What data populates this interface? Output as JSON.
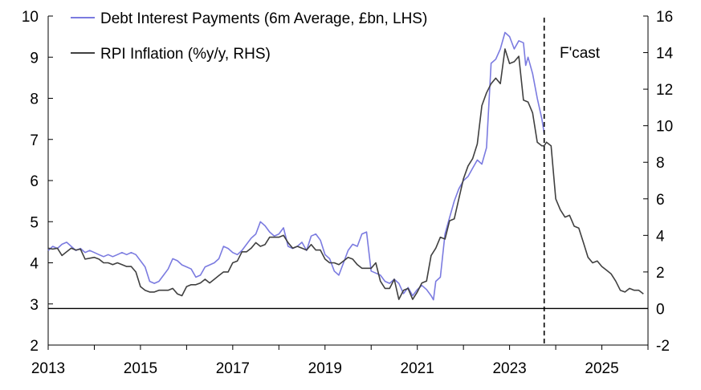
{
  "chart_data": {
    "type": "line",
    "title": "",
    "xlabel": "",
    "ylabel_left": "",
    "ylabel_right": "",
    "x_ticks": [
      2013,
      2015,
      2017,
      2019,
      2021,
      2023,
      2025
    ],
    "xlim": [
      2013,
      2026
    ],
    "ylim_left": [
      2,
      10
    ],
    "ylim_right": [
      -2,
      16
    ],
    "left_ticks": [
      2,
      3,
      4,
      5,
      6,
      7,
      8,
      9,
      10
    ],
    "right_ticks": [
      -2,
      0,
      2,
      4,
      6,
      8,
      10,
      12,
      14,
      16
    ],
    "forecast_start": 2023.75,
    "forecast_label": "F'cast",
    "legend_position": "top-left",
    "series": [
      {
        "name": "Debt Interest Payments (6m Average, £bn, LHS)",
        "axis": "left",
        "color": "#7B7BE0",
        "points": [
          [
            2013.0,
            4.3
          ],
          [
            2013.1,
            4.4
          ],
          [
            2013.2,
            4.35
          ],
          [
            2013.3,
            4.45
          ],
          [
            2013.4,
            4.5
          ],
          [
            2013.5,
            4.4
          ],
          [
            2013.6,
            4.3
          ],
          [
            2013.7,
            4.35
          ],
          [
            2013.8,
            4.25
          ],
          [
            2013.9,
            4.3
          ],
          [
            2014.0,
            4.25
          ],
          [
            2014.1,
            4.2
          ],
          [
            2014.2,
            4.15
          ],
          [
            2014.3,
            4.2
          ],
          [
            2014.4,
            4.15
          ],
          [
            2014.5,
            4.2
          ],
          [
            2014.6,
            4.25
          ],
          [
            2014.7,
            4.2
          ],
          [
            2014.8,
            4.25
          ],
          [
            2014.9,
            4.2
          ],
          [
            2015.0,
            4.05
          ],
          [
            2015.1,
            3.9
          ],
          [
            2015.2,
            3.55
          ],
          [
            2015.3,
            3.5
          ],
          [
            2015.4,
            3.55
          ],
          [
            2015.5,
            3.7
          ],
          [
            2015.6,
            3.85
          ],
          [
            2015.7,
            4.1
          ],
          [
            2015.8,
            4.05
          ],
          [
            2015.9,
            3.95
          ],
          [
            2016.0,
            3.9
          ],
          [
            2016.1,
            3.85
          ],
          [
            2016.2,
            3.65
          ],
          [
            2016.3,
            3.7
          ],
          [
            2016.4,
            3.9
          ],
          [
            2016.5,
            3.95
          ],
          [
            2016.6,
            4.0
          ],
          [
            2016.7,
            4.1
          ],
          [
            2016.8,
            4.4
          ],
          [
            2016.9,
            4.35
          ],
          [
            2017.0,
            4.25
          ],
          [
            2017.1,
            4.2
          ],
          [
            2017.2,
            4.3
          ],
          [
            2017.3,
            4.45
          ],
          [
            2017.4,
            4.6
          ],
          [
            2017.5,
            4.7
          ],
          [
            2017.6,
            5.0
          ],
          [
            2017.7,
            4.9
          ],
          [
            2017.8,
            4.75
          ],
          [
            2017.9,
            4.65
          ],
          [
            2018.0,
            4.7
          ],
          [
            2018.1,
            4.85
          ],
          [
            2018.2,
            4.4
          ],
          [
            2018.3,
            4.35
          ],
          [
            2018.4,
            4.4
          ],
          [
            2018.5,
            4.5
          ],
          [
            2018.6,
            4.3
          ],
          [
            2018.7,
            4.65
          ],
          [
            2018.8,
            4.7
          ],
          [
            2018.9,
            4.55
          ],
          [
            2019.0,
            4.2
          ],
          [
            2019.1,
            4.1
          ],
          [
            2019.2,
            3.8
          ],
          [
            2019.3,
            3.7
          ],
          [
            2019.4,
            4.0
          ],
          [
            2019.5,
            4.3
          ],
          [
            2019.6,
            4.45
          ],
          [
            2019.7,
            4.4
          ],
          [
            2019.8,
            4.7
          ],
          [
            2019.9,
            4.75
          ],
          [
            2020.0,
            3.8
          ],
          [
            2020.1,
            3.75
          ],
          [
            2020.2,
            3.7
          ],
          [
            2020.3,
            3.55
          ],
          [
            2020.4,
            3.5
          ],
          [
            2020.5,
            3.6
          ],
          [
            2020.6,
            3.5
          ],
          [
            2020.7,
            3.25
          ],
          [
            2020.8,
            3.4
          ],
          [
            2020.9,
            3.2
          ],
          [
            2021.0,
            3.35
          ],
          [
            2021.1,
            3.45
          ],
          [
            2021.2,
            3.35
          ],
          [
            2021.3,
            3.2
          ],
          [
            2021.35,
            3.1
          ],
          [
            2021.4,
            3.55
          ],
          [
            2021.5,
            3.65
          ],
          [
            2021.6,
            4.7
          ],
          [
            2021.7,
            5.1
          ],
          [
            2021.8,
            5.5
          ],
          [
            2021.9,
            5.8
          ],
          [
            2022.0,
            6.0
          ],
          [
            2022.1,
            6.1
          ],
          [
            2022.2,
            6.3
          ],
          [
            2022.3,
            6.5
          ],
          [
            2022.4,
            6.4
          ],
          [
            2022.5,
            6.8
          ],
          [
            2022.6,
            8.85
          ],
          [
            2022.7,
            8.95
          ],
          [
            2022.8,
            9.2
          ],
          [
            2022.9,
            9.6
          ],
          [
            2023.0,
            9.5
          ],
          [
            2023.1,
            9.2
          ],
          [
            2023.2,
            9.4
          ],
          [
            2023.3,
            9.35
          ],
          [
            2023.35,
            8.8
          ],
          [
            2023.4,
            9.0
          ],
          [
            2023.5,
            8.6
          ],
          [
            2023.6,
            8.0
          ],
          [
            2023.7,
            7.5
          ],
          [
            2023.75,
            7.15
          ]
        ]
      },
      {
        "name": "RPI Inflation (%y/y, RHS)",
        "axis": "right",
        "color": "#404040",
        "points": [
          [
            2013.0,
            3.3
          ],
          [
            2013.1,
            3.25
          ],
          [
            2013.2,
            3.3
          ],
          [
            2013.3,
            2.9
          ],
          [
            2013.4,
            3.1
          ],
          [
            2013.5,
            3.3
          ],
          [
            2013.6,
            3.2
          ],
          [
            2013.7,
            3.25
          ],
          [
            2013.8,
            2.7
          ],
          [
            2013.9,
            2.75
          ],
          [
            2014.0,
            2.8
          ],
          [
            2014.1,
            2.7
          ],
          [
            2014.2,
            2.5
          ],
          [
            2014.3,
            2.5
          ],
          [
            2014.4,
            2.4
          ],
          [
            2014.5,
            2.5
          ],
          [
            2014.6,
            2.4
          ],
          [
            2014.7,
            2.3
          ],
          [
            2014.8,
            2.3
          ],
          [
            2014.9,
            2.0
          ],
          [
            2015.0,
            1.2
          ],
          [
            2015.1,
            1.0
          ],
          [
            2015.2,
            0.9
          ],
          [
            2015.3,
            0.9
          ],
          [
            2015.4,
            1.0
          ],
          [
            2015.5,
            1.0
          ],
          [
            2015.6,
            1.0
          ],
          [
            2015.7,
            1.1
          ],
          [
            2015.8,
            0.8
          ],
          [
            2015.9,
            0.7
          ],
          [
            2016.0,
            1.2
          ],
          [
            2016.1,
            1.3
          ],
          [
            2016.2,
            1.3
          ],
          [
            2016.3,
            1.4
          ],
          [
            2016.4,
            1.6
          ],
          [
            2016.5,
            1.4
          ],
          [
            2016.6,
            1.6
          ],
          [
            2016.7,
            1.8
          ],
          [
            2016.8,
            2.0
          ],
          [
            2016.9,
            2.0
          ],
          [
            2017.0,
            2.5
          ],
          [
            2017.1,
            2.6
          ],
          [
            2017.2,
            3.1
          ],
          [
            2017.3,
            3.1
          ],
          [
            2017.4,
            3.3
          ],
          [
            2017.5,
            3.6
          ],
          [
            2017.6,
            3.4
          ],
          [
            2017.7,
            3.5
          ],
          [
            2017.8,
            3.9
          ],
          [
            2017.9,
            3.9
          ],
          [
            2018.0,
            3.9
          ],
          [
            2018.1,
            4.0
          ],
          [
            2018.2,
            3.6
          ],
          [
            2018.3,
            3.3
          ],
          [
            2018.4,
            3.4
          ],
          [
            2018.5,
            3.3
          ],
          [
            2018.6,
            3.2
          ],
          [
            2018.7,
            3.5
          ],
          [
            2018.8,
            3.2
          ],
          [
            2018.9,
            3.2
          ],
          [
            2019.0,
            2.7
          ],
          [
            2019.1,
            2.5
          ],
          [
            2019.2,
            2.5
          ],
          [
            2019.3,
            2.4
          ],
          [
            2019.4,
            2.6
          ],
          [
            2019.5,
            2.8
          ],
          [
            2019.6,
            2.7
          ],
          [
            2019.7,
            2.4
          ],
          [
            2019.8,
            2.2
          ],
          [
            2019.9,
            2.2
          ],
          [
            2020.0,
            2.2
          ],
          [
            2020.1,
            2.5
          ],
          [
            2020.2,
            1.5
          ],
          [
            2020.3,
            1.1
          ],
          [
            2020.4,
            1.1
          ],
          [
            2020.5,
            1.6
          ],
          [
            2020.6,
            0.5
          ],
          [
            2020.7,
            1.0
          ],
          [
            2020.8,
            1.1
          ],
          [
            2020.9,
            0.5
          ],
          [
            2021.0,
            0.9
          ],
          [
            2021.1,
            1.4
          ],
          [
            2021.2,
            1.5
          ],
          [
            2021.3,
            2.9
          ],
          [
            2021.4,
            3.3
          ],
          [
            2021.5,
            3.9
          ],
          [
            2021.6,
            3.8
          ],
          [
            2021.7,
            4.8
          ],
          [
            2021.8,
            4.9
          ],
          [
            2021.9,
            6.0
          ],
          [
            2022.0,
            7.1
          ],
          [
            2022.1,
            7.8
          ],
          [
            2022.2,
            8.2
          ],
          [
            2022.3,
            9.0
          ],
          [
            2022.4,
            11.1
          ],
          [
            2022.5,
            11.8
          ],
          [
            2022.6,
            12.3
          ],
          [
            2022.7,
            12.6
          ],
          [
            2022.8,
            12.3
          ],
          [
            2022.9,
            14.2
          ],
          [
            2023.0,
            13.4
          ],
          [
            2023.1,
            13.5
          ],
          [
            2023.2,
            13.8
          ],
          [
            2023.3,
            11.4
          ],
          [
            2023.4,
            11.3
          ],
          [
            2023.5,
            10.7
          ],
          [
            2023.6,
            9.1
          ],
          [
            2023.7,
            8.9
          ],
          [
            2023.75,
            8.9
          ],
          [
            2023.8,
            9.1
          ],
          [
            2023.9,
            8.9
          ],
          [
            2024.0,
            6.0
          ],
          [
            2024.1,
            5.4
          ],
          [
            2024.2,
            5.0
          ],
          [
            2024.3,
            5.1
          ],
          [
            2024.4,
            4.5
          ],
          [
            2024.5,
            4.4
          ],
          [
            2024.6,
            3.6
          ],
          [
            2024.7,
            2.8
          ],
          [
            2024.8,
            2.5
          ],
          [
            2024.9,
            2.6
          ],
          [
            2025.0,
            2.3
          ],
          [
            2025.1,
            2.1
          ],
          [
            2025.2,
            1.9
          ],
          [
            2025.3,
            1.5
          ],
          [
            2025.4,
            1.0
          ],
          [
            2025.5,
            0.9
          ],
          [
            2025.6,
            1.1
          ],
          [
            2025.7,
            1.0
          ],
          [
            2025.8,
            1.0
          ],
          [
            2025.9,
            0.8
          ]
        ]
      }
    ]
  }
}
